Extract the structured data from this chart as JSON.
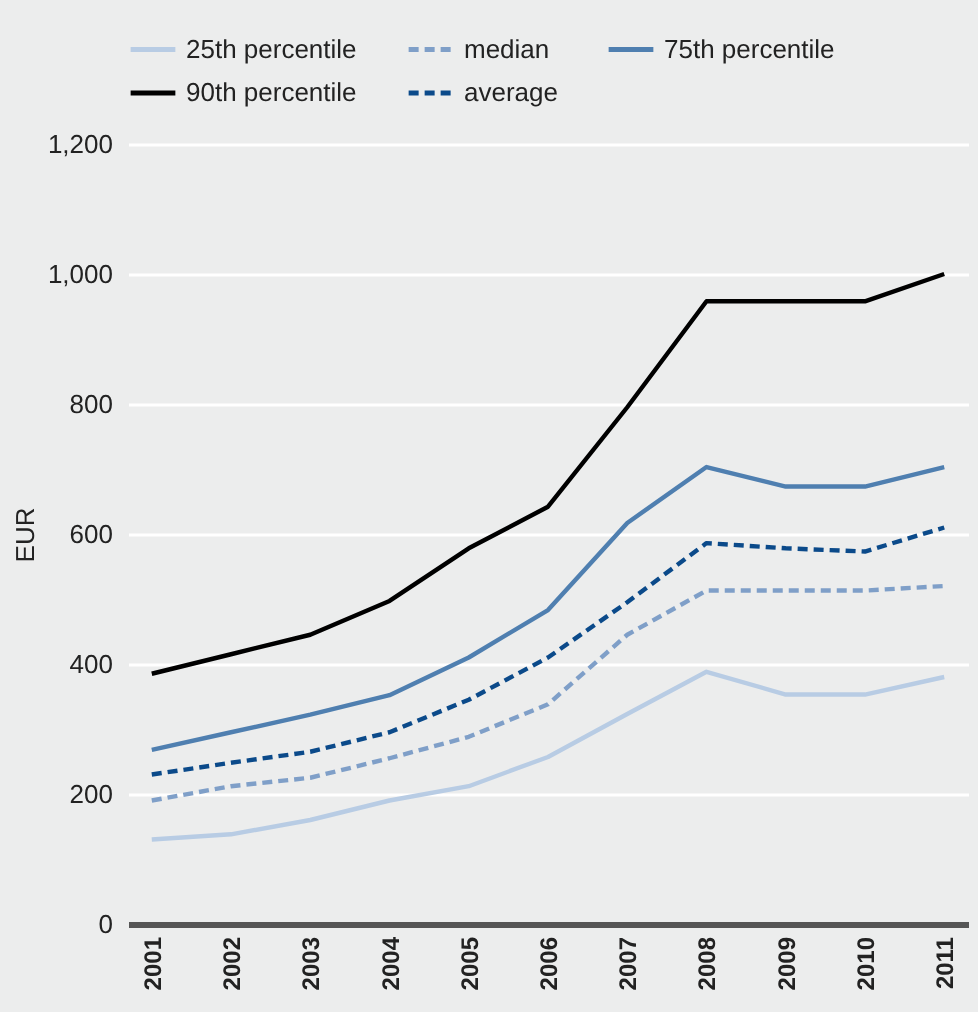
{
  "chart_data": {
    "type": "line",
    "ylabel": "EUR",
    "categories": [
      "2001",
      "2002",
      "2003",
      "2004",
      "2005",
      "2006",
      "2007",
      "2008",
      "2009",
      "2010",
      "2011"
    ],
    "series": [
      {
        "name": "25th percentile",
        "color": "#b8cce4",
        "line_style": "solid",
        "values": [
          130,
          138,
          160,
          190,
          212,
          257,
          323,
          388,
          353,
          353,
          380
        ]
      },
      {
        "name": "median",
        "color": "#7f9fc8",
        "line_style": "dashed",
        "values": [
          190,
          212,
          225,
          255,
          288,
          338,
          445,
          513,
          513,
          513,
          520
        ]
      },
      {
        "name": "75th percentile",
        "color": "#4f7fb0",
        "line_style": "solid",
        "values": [
          268,
          295,
          322,
          352,
          410,
          483,
          617,
          703,
          673,
          673,
          703
        ]
      },
      {
        "name": "90th percentile",
        "color": "#000000",
        "line_style": "solid",
        "values": [
          385,
          415,
          445,
          497,
          578,
          642,
          795,
          958,
          958,
          958,
          1000
        ]
      },
      {
        "name": "average",
        "color": "#0b4a8a",
        "line_style": "dashed",
        "values": [
          230,
          248,
          265,
          295,
          345,
          410,
          495,
          586,
          578,
          573,
          610
        ]
      }
    ],
    "ylim": [
      0,
      1200
    ],
    "yticks": [
      0,
      200,
      400,
      600,
      800,
      {
        "value": 1000,
        "label": "1,000"
      },
      {
        "value": 1200,
        "label": "1,200"
      }
    ],
    "grid": "y",
    "legend": "top",
    "marker": "none"
  }
}
